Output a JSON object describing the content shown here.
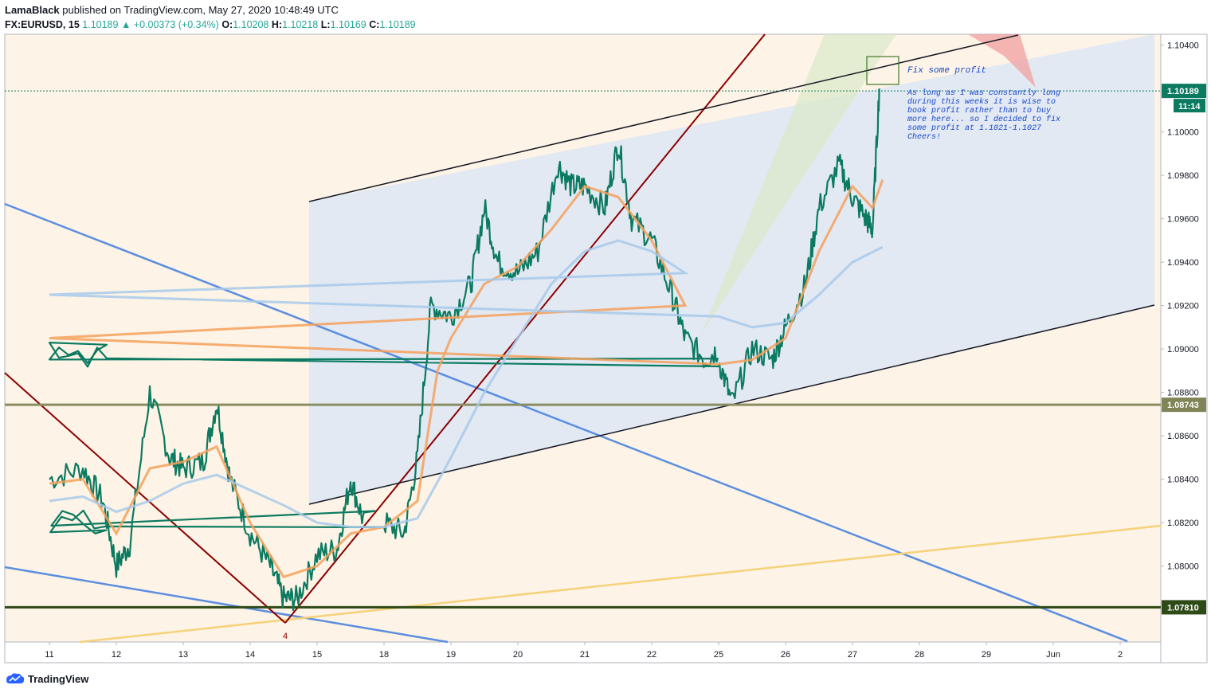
{
  "header": {
    "author": "LamaBlack",
    "published": "published on TradingView.com, May 27, 2020 10:48:49 UTC",
    "symbol": "FX:EURUSD, 15",
    "last": "1.10189",
    "change": "+0.00373 (+0.34%)",
    "o_label": "O:",
    "o_value": "1.10208",
    "h_label": "H:",
    "h_value": "1.10218",
    "l_label": "L:",
    "l_value": "1.10169",
    "c_label": "C:",
    "c_value": "1.10189"
  },
  "footer": {
    "brand": "TradingView",
    "logo_icon": "tradingview-logo-icon"
  },
  "colors": {
    "background": "#fdf3e6",
    "price": "#0b7a60",
    "ema_fast": "#f5a05a",
    "ema_slow": "#a7c9ea",
    "channel_fill": "#dde6f5",
    "support_red": "#8b0000",
    "trend_blue": "#5b8ee0",
    "trend_yellow": "#f5d27a",
    "level_olive": "#8a8c62",
    "level_dark": "#2e4a17"
  },
  "chart_data": {
    "type": "line",
    "title": "FX:EURUSD, 15",
    "ylim": [
      1.0765,
      1.1045
    ],
    "y_ticks": [
      "1.10400",
      "1.10000",
      "1.09800",
      "1.09600",
      "1.09400",
      "1.09200",
      "1.09000",
      "1.08800",
      "1.08600",
      "1.08400",
      "1.08200",
      "1.08000"
    ],
    "x_ticks": [
      "11",
      "12",
      "13",
      "14",
      "15",
      "18",
      "19",
      "20",
      "21",
      "22",
      "25",
      "26",
      "27",
      "28",
      "29",
      "Jun",
      "2"
    ],
    "price_labels": [
      {
        "text": "1.10189",
        "value": 1.10189,
        "sub": "11:14",
        "color": "#0b7a60"
      },
      {
        "text": "1.08743",
        "value": 1.08743,
        "color": "#808456"
      },
      {
        "text": "1.07810",
        "value": 1.0781,
        "color": "#2e4a17"
      }
    ],
    "series": [
      {
        "name": "EURUSD",
        "kind": "price",
        "points": [
          [
            11,
            1.084
          ],
          [
            11.5,
            1.0845
          ],
          [
            11.8,
            1.083
          ],
          [
            12,
            1.08
          ],
          [
            12.2,
            1.081
          ],
          [
            12.5,
            1.088
          ],
          [
            12.8,
            1.085
          ],
          [
            13,
            1.0845
          ],
          [
            13.3,
            1.0848
          ],
          [
            13.5,
            1.0875
          ],
          [
            13.7,
            1.084
          ],
          [
            14,
            1.0815
          ],
          [
            14.3,
            1.08
          ],
          [
            14.5,
            1.0785
          ],
          [
            14.7,
            1.0785
          ],
          [
            15,
            1.0805
          ],
          [
            15.3,
            1.0808
          ],
          [
            15.5,
            1.084
          ],
          [
            15.7,
            1.082
          ],
          [
            18,
            1.082
          ],
          [
            18.3,
            1.0815
          ],
          [
            18.5,
            1.085
          ],
          [
            18.7,
            1.092
          ],
          [
            19,
            1.0915
          ],
          [
            19.3,
            1.093
          ],
          [
            19.5,
            1.0965
          ],
          [
            19.7,
            1.094
          ],
          [
            20,
            1.0935
          ],
          [
            20.3,
            1.0945
          ],
          [
            20.6,
            1.0985
          ],
          [
            20.8,
            1.0975
          ],
          [
            21,
            1.0975
          ],
          [
            21.3,
            1.0965
          ],
          [
            21.5,
            1.0995
          ],
          [
            21.7,
            1.096
          ],
          [
            22,
            1.095
          ],
          [
            22.3,
            1.0925
          ],
          [
            22.5,
            1.0905
          ],
          [
            22.8,
            1.0895
          ],
          [
            23,
            1.09
          ],
          [
            25,
            1.0895
          ],
          [
            25.2,
            1.0875
          ],
          [
            25.5,
            1.09
          ],
          [
            25.8,
            1.0895
          ],
          [
            26,
            1.091
          ],
          [
            26.3,
            1.093
          ],
          [
            26.5,
            1.0965
          ],
          [
            26.8,
            1.0985
          ],
          [
            27,
            1.097
          ],
          [
            27.2,
            1.096
          ],
          [
            27.3,
            1.0955
          ],
          [
            27.4,
            1.102
          ]
        ]
      },
      {
        "name": "EMA fast",
        "kind": "ema_fast",
        "points": [
          [
            11,
            1.0838
          ],
          [
            11.5,
            1.084
          ],
          [
            12,
            1.0815
          ],
          [
            12.5,
            1.0845
          ],
          [
            13,
            1.0848
          ],
          [
            13.5,
            1.0855
          ],
          [
            14,
            1.082
          ],
          [
            14.5,
            1.0795
          ],
          [
            15,
            1.08
          ],
          [
            15.5,
            1.0815
          ],
          [
            18,
            1.0818
          ],
          [
            18.5,
            1.083
          ],
          [
            18.8,
            1.089
          ],
          [
            19,
            1.0905
          ],
          [
            19.5,
            1.093
          ],
          [
            20,
            1.0938
          ],
          [
            20.5,
            1.0955
          ],
          [
            21,
            1.0975
          ],
          [
            21.5,
            1.097
          ],
          [
            22,
            1.095
          ],
          [
            22.5,
            1.092
          ],
          [
            23,
            1.0905
          ],
          [
            25,
            1.0893
          ],
          [
            25.5,
            1.0895
          ],
          [
            26,
            1.0905
          ],
          [
            26.5,
            1.0945
          ],
          [
            27,
            1.0975
          ],
          [
            27.3,
            1.0965
          ],
          [
            27.45,
            1.0978
          ]
        ]
      },
      {
        "name": "EMA slow",
        "kind": "ema_slow",
        "points": [
          [
            11,
            1.083
          ],
          [
            11.5,
            1.0832
          ],
          [
            12,
            1.0825
          ],
          [
            12.5,
            1.083
          ],
          [
            13,
            1.0838
          ],
          [
            13.5,
            1.0842
          ],
          [
            14,
            1.0835
          ],
          [
            14.5,
            1.0828
          ],
          [
            15,
            1.082
          ],
          [
            15.5,
            1.0818
          ],
          [
            18,
            1.0818
          ],
          [
            18.5,
            1.0822
          ],
          [
            19,
            1.085
          ],
          [
            19.5,
            1.088
          ],
          [
            20,
            1.0905
          ],
          [
            20.5,
            1.093
          ],
          [
            21,
            1.0945
          ],
          [
            21.5,
            1.095
          ],
          [
            22,
            1.0945
          ],
          [
            22.5,
            1.0935
          ],
          [
            23,
            1.0925
          ],
          [
            25,
            1.0915
          ],
          [
            25.5,
            1.091
          ],
          [
            26,
            1.0912
          ],
          [
            26.5,
            1.0925
          ],
          [
            27,
            1.094
          ],
          [
            27.45,
            1.0947
          ]
        ]
      }
    ],
    "annotations": [
      {
        "text": "4",
        "kind": "pivot-label"
      },
      {
        "text": "Fix some profit",
        "kind": "note-title"
      },
      {
        "text": "As long as I was constantly long during this weeks it is wise to book profit rather than to buy more here... so I decided to fix some profit at 1.1021-1.1027 Cheers!",
        "kind": "note-body"
      }
    ],
    "grid": false,
    "legend": "none"
  }
}
